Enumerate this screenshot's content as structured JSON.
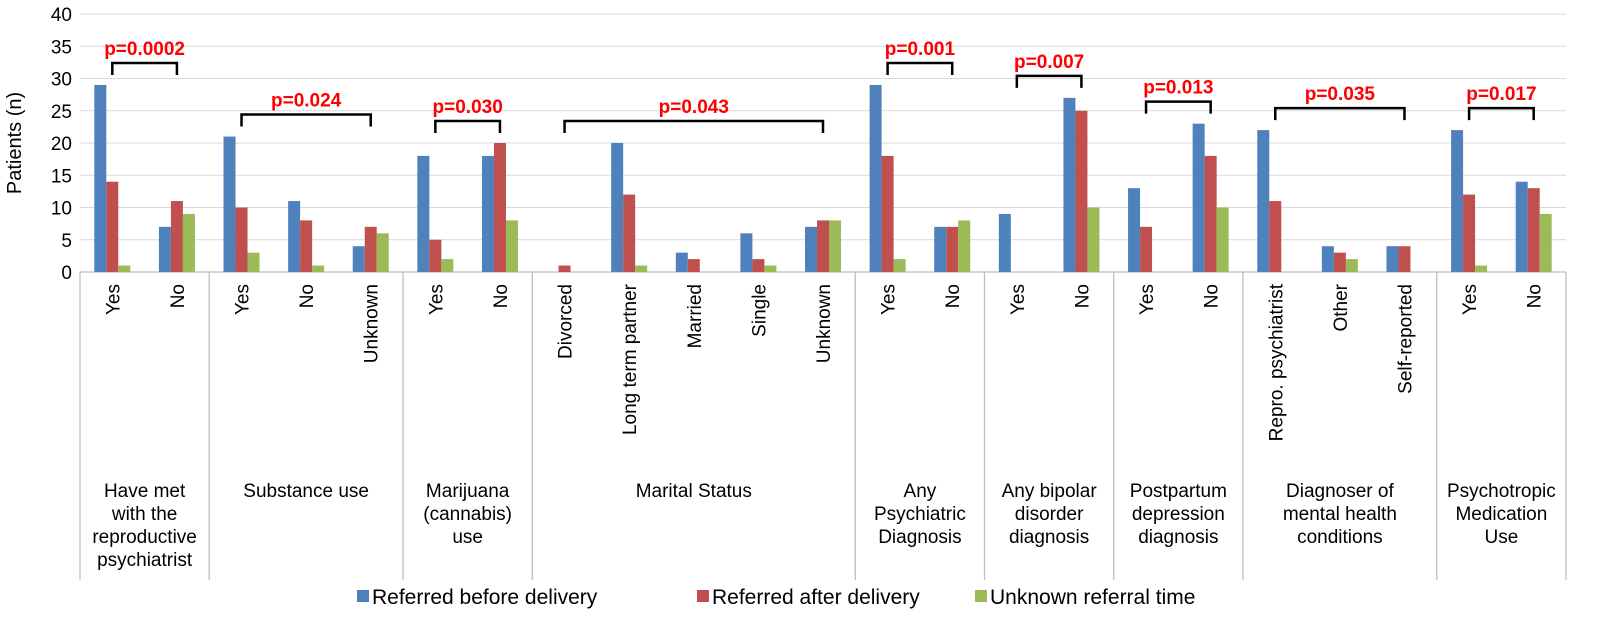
{
  "chart_data": {
    "type": "bar",
    "ylabel": "Patients (n)",
    "ylim": [
      0,
      40
    ],
    "yticks": [
      0,
      5,
      10,
      15,
      20,
      25,
      30,
      35,
      40
    ],
    "grid": true,
    "legend_position": "bottom",
    "series": [
      {
        "name": "Referred before delivery",
        "color": "#4f81bd"
      },
      {
        "name": "Referred after delivery",
        "color": "#c0504d"
      },
      {
        "name": "Unknown referral time",
        "color": "#9bbb59"
      }
    ],
    "groups": [
      {
        "label": [
          "Have met",
          "with the",
          "reproductive",
          "psychiatrist"
        ],
        "categories": [
          {
            "label": "Yes",
            "values": [
              29,
              14,
              1
            ]
          },
          {
            "label": "No",
            "values": [
              7,
              11,
              9
            ]
          }
        ],
        "pvalue": "p=0.0002"
      },
      {
        "label": [
          "Substance use"
        ],
        "categories": [
          {
            "label": "Yes",
            "values": [
              21,
              10,
              3
            ]
          },
          {
            "label": "No",
            "values": [
              11,
              8,
              1
            ]
          },
          {
            "label": "Unknown",
            "values": [
              4,
              7,
              6
            ]
          }
        ],
        "pvalue": "p=0.024"
      },
      {
        "label": [
          "Marijuana",
          "(cannabis)",
          "use"
        ],
        "categories": [
          {
            "label": "Yes",
            "values": [
              18,
              5,
              2
            ]
          },
          {
            "label": "No",
            "values": [
              18,
              20,
              8
            ]
          }
        ],
        "pvalue": "p=0.030"
      },
      {
        "label": [
          "Marital Status"
        ],
        "categories": [
          {
            "label": "Divorced",
            "values": [
              0,
              1,
              0
            ]
          },
          {
            "label": "Long term partner",
            "values": [
              20,
              12,
              1
            ]
          },
          {
            "label": "Married",
            "values": [
              3,
              2,
              0
            ]
          },
          {
            "label": "Single",
            "values": [
              6,
              2,
              1
            ]
          },
          {
            "label": "Unknown",
            "values": [
              7,
              8,
              8
            ]
          }
        ],
        "pvalue": "p=0.043"
      },
      {
        "label": [
          "Any",
          "Psychiatric",
          "Diagnosis"
        ],
        "categories": [
          {
            "label": "Yes",
            "values": [
              29,
              18,
              2
            ]
          },
          {
            "label": "No",
            "values": [
              7,
              7,
              8
            ]
          }
        ],
        "pvalue": "p=0.001"
      },
      {
        "label": [
          "Any bipolar",
          "disorder",
          "diagnosis"
        ],
        "categories": [
          {
            "label": "Yes",
            "values": [
              9,
              0,
              0
            ]
          },
          {
            "label": "No",
            "values": [
              27,
              25,
              10
            ]
          }
        ],
        "pvalue": "p=0.007"
      },
      {
        "label": [
          "Postpartum",
          "depression",
          "diagnosis"
        ],
        "categories": [
          {
            "label": "Yes",
            "values": [
              13,
              7,
              0
            ]
          },
          {
            "label": "No",
            "values": [
              23,
              18,
              10
            ]
          }
        ],
        "pvalue": "p=0.013"
      },
      {
        "label": [
          "Diagnoser of",
          "mental health",
          "conditions"
        ],
        "categories": [
          {
            "label": "Repro. psychiatrist",
            "values": [
              22,
              11,
              0
            ]
          },
          {
            "label": "Other",
            "values": [
              4,
              3,
              2
            ]
          },
          {
            "label": "Self-reported",
            "values": [
              4,
              4,
              0
            ]
          }
        ],
        "pvalue": "p=0.035"
      },
      {
        "label": [
          "Psychotropic",
          "Medication",
          "Use"
        ],
        "categories": [
          {
            "label": "Yes",
            "values": [
              22,
              12,
              1
            ]
          },
          {
            "label": "No",
            "values": [
              14,
              13,
              9
            ]
          }
        ],
        "pvalue": "p=0.017"
      }
    ]
  }
}
